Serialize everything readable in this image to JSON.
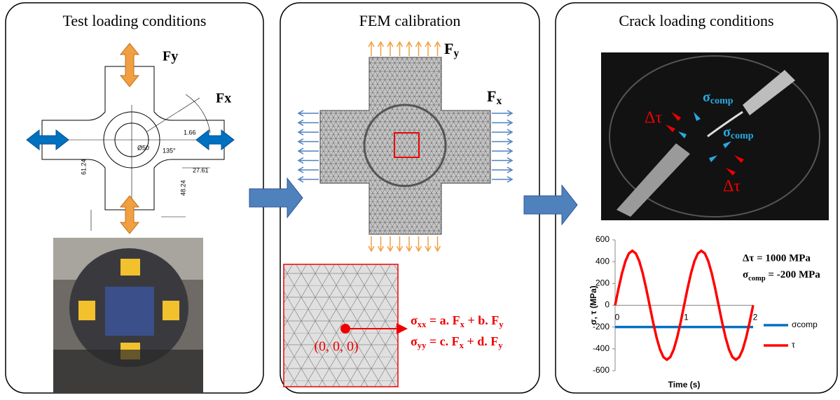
{
  "test": {
    "title": "Test loading conditions",
    "fy": "Fy",
    "fx": "Fx",
    "dims": [
      "27.61",
      "61.24",
      "48.24",
      "1.66",
      "Ø50",
      "135°"
    ]
  },
  "fem": {
    "title": "FEM calibration",
    "fy": [
      "F",
      "y"
    ],
    "fx": [
      "F",
      "x"
    ],
    "eq_xx": [
      "σ",
      "xx",
      " = a. F",
      "x",
      " + b. F",
      "y"
    ],
    "eq_yy": [
      "σ",
      "yy",
      " = c. F",
      "x",
      " + d. F",
      "y"
    ],
    "origin": "(0, 0, 0)"
  },
  "crack": {
    "title": "Crack loading conditions",
    "dtau": "Δτ",
    "scomp": [
      "σ",
      "comp"
    ],
    "note1": "Δτ = 1000 MPa",
    "note2": [
      "σ",
      "comp",
      " = -200 MPa"
    ]
  },
  "chart_data": {
    "type": "line",
    "ylabel": "σ, τ (MPa)",
    "xlabel": "Time (s)",
    "xlim": [
      0,
      2
    ],
    "ylim": [
      -600,
      600
    ],
    "yticks": [
      -600,
      -400,
      -200,
      0,
      200,
      400,
      600
    ],
    "xticks": [
      0,
      1,
      2
    ],
    "series": [
      {
        "name": "σcomp",
        "color": "#0070c0",
        "x": [
          0,
          2
        ],
        "values": [
          -200,
          -200
        ]
      },
      {
        "name": "τ",
        "color": "#ff0000",
        "x": [
          0,
          0.05,
          0.1,
          0.15,
          0.2,
          0.25,
          0.3,
          0.35,
          0.4,
          0.45,
          0.5,
          0.55,
          0.6,
          0.65,
          0.7,
          0.75,
          0.8,
          0.85,
          0.9,
          0.95,
          1,
          1.05,
          1.1,
          1.15,
          1.2,
          1.25,
          1.3,
          1.35,
          1.4,
          1.45,
          1.5,
          1.55,
          1.6,
          1.65,
          1.7,
          1.75,
          1.8,
          1.85,
          1.9,
          1.95,
          2
        ],
        "values": [
          0,
          155,
          294,
          405,
          476,
          500,
          476,
          405,
          294,
          155,
          0,
          -155,
          -294,
          -405,
          -476,
          -500,
          -476,
          -405,
          -294,
          -155,
          0,
          155,
          294,
          405,
          476,
          500,
          476,
          405,
          294,
          155,
          0,
          -155,
          -294,
          -405,
          -476,
          -500,
          -476,
          -405,
          -294,
          -155,
          0
        ]
      }
    ]
  }
}
